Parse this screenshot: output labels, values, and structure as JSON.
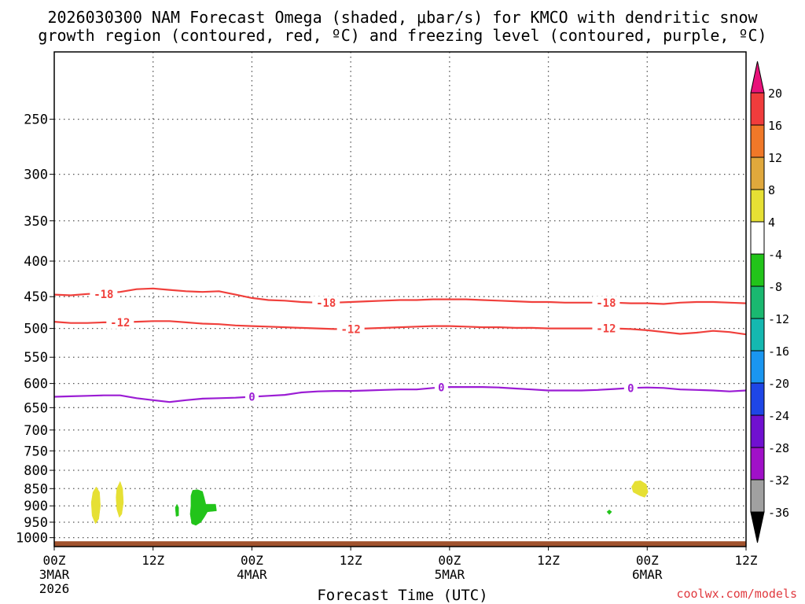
{
  "title_line1": "2026030300 NAM Forecast Omega (shaded, μbar/s) for KMCO with dendritic snow",
  "title_line2": "growth region (contoured, red, ºC) and freezing level (contoured, purple, ºC)",
  "credit": "coolwx.com/models",
  "chart_data": {
    "type": "contour",
    "xlabel": "Forecast Time (UTC)",
    "x_range_hours": [
      0,
      84
    ],
    "x_ticks": [
      {
        "hour": 0,
        "label": "00Z",
        "sub": "3MAR",
        "sub2": "2026"
      },
      {
        "hour": 12,
        "label": "12Z",
        "sub": "",
        "sub2": ""
      },
      {
        "hour": 24,
        "label": "00Z",
        "sub": "4MAR",
        "sub2": ""
      },
      {
        "hour": 36,
        "label": "12Z",
        "sub": "",
        "sub2": ""
      },
      {
        "hour": 48,
        "label": "00Z",
        "sub": "5MAR",
        "sub2": ""
      },
      {
        "hour": 60,
        "label": "12Z",
        "sub": "",
        "sub2": ""
      },
      {
        "hour": 72,
        "label": "00Z",
        "sub": "6MAR",
        "sub2": ""
      },
      {
        "hour": 84,
        "label": "12Z",
        "sub": "",
        "sub2": ""
      }
    ],
    "y_axis": "pressure_hPa_log",
    "y_range_hPa": [
      200,
      1030
    ],
    "y_ticks": [
      250,
      300,
      350,
      400,
      450,
      500,
      550,
      600,
      650,
      700,
      750,
      800,
      850,
      900,
      950,
      1000
    ],
    "grid": true,
    "contours": [
      {
        "name": "-18",
        "color": "#f0403c",
        "points": [
          [
            0,
            447
          ],
          [
            2,
            448
          ],
          [
            4,
            446
          ],
          [
            6,
            445
          ],
          [
            8,
            443
          ],
          [
            10,
            439
          ],
          [
            12,
            438
          ],
          [
            14,
            440
          ],
          [
            16,
            442
          ],
          [
            18,
            443
          ],
          [
            20,
            442
          ],
          [
            22,
            447
          ],
          [
            24,
            452
          ],
          [
            26,
            455
          ],
          [
            28,
            456
          ],
          [
            30,
            458
          ],
          [
            32,
            459
          ],
          [
            34,
            459
          ],
          [
            36,
            458
          ],
          [
            38,
            457
          ],
          [
            40,
            456
          ],
          [
            42,
            455
          ],
          [
            44,
            455
          ],
          [
            46,
            454
          ],
          [
            48,
            454
          ],
          [
            50,
            454
          ],
          [
            52,
            455
          ],
          [
            54,
            456
          ],
          [
            56,
            457
          ],
          [
            58,
            458
          ],
          [
            60,
            458
          ],
          [
            62,
            459
          ],
          [
            64,
            459
          ],
          [
            66,
            459
          ],
          [
            68,
            459
          ],
          [
            70,
            460
          ],
          [
            72,
            460
          ],
          [
            74,
            461
          ],
          [
            76,
            459
          ],
          [
            78,
            458
          ],
          [
            80,
            458
          ],
          [
            82,
            459
          ],
          [
            84,
            460
          ]
        ],
        "labels": [
          [
            6,
            446
          ],
          [
            33,
            459
          ],
          [
            67,
            459
          ]
        ]
      },
      {
        "name": "-12",
        "color": "#f0403c",
        "points": [
          [
            0,
            489
          ],
          [
            2,
            491
          ],
          [
            4,
            491
          ],
          [
            6,
            490
          ],
          [
            8,
            490
          ],
          [
            10,
            489
          ],
          [
            12,
            488
          ],
          [
            14,
            488
          ],
          [
            16,
            490
          ],
          [
            18,
            492
          ],
          [
            20,
            493
          ],
          [
            22,
            495
          ],
          [
            24,
            496
          ],
          [
            26,
            497
          ],
          [
            28,
            498
          ],
          [
            30,
            499
          ],
          [
            32,
            500
          ],
          [
            34,
            501
          ],
          [
            36,
            501
          ],
          [
            38,
            500
          ],
          [
            40,
            499
          ],
          [
            42,
            498
          ],
          [
            44,
            497
          ],
          [
            46,
            496
          ],
          [
            48,
            496
          ],
          [
            50,
            497
          ],
          [
            52,
            498
          ],
          [
            54,
            498
          ],
          [
            56,
            499
          ],
          [
            58,
            499
          ],
          [
            60,
            500
          ],
          [
            62,
            500
          ],
          [
            64,
            500
          ],
          [
            66,
            500
          ],
          [
            68,
            500
          ],
          [
            70,
            501
          ],
          [
            72,
            503
          ],
          [
            74,
            506
          ],
          [
            76,
            509
          ],
          [
            78,
            507
          ],
          [
            80,
            504
          ],
          [
            82,
            506
          ],
          [
            84,
            510
          ]
        ],
        "labels": [
          [
            8,
            490
          ],
          [
            36,
            501
          ],
          [
            67,
            500
          ]
        ]
      },
      {
        "name": "0",
        "color": "#9b1cd4",
        "points": [
          [
            0,
            627
          ],
          [
            2,
            626
          ],
          [
            4,
            625
          ],
          [
            6,
            624
          ],
          [
            8,
            624
          ],
          [
            10,
            630
          ],
          [
            12,
            634
          ],
          [
            14,
            638
          ],
          [
            16,
            634
          ],
          [
            18,
            631
          ],
          [
            20,
            630
          ],
          [
            22,
            629
          ],
          [
            24,
            627
          ],
          [
            26,
            625
          ],
          [
            28,
            623
          ],
          [
            30,
            618
          ],
          [
            32,
            616
          ],
          [
            34,
            615
          ],
          [
            36,
            615
          ],
          [
            38,
            614
          ],
          [
            40,
            613
          ],
          [
            42,
            612
          ],
          [
            44,
            612
          ],
          [
            46,
            609
          ],
          [
            48,
            607
          ],
          [
            50,
            607
          ],
          [
            52,
            607
          ],
          [
            54,
            608
          ],
          [
            56,
            610
          ],
          [
            58,
            612
          ],
          [
            60,
            614
          ],
          [
            62,
            614
          ],
          [
            64,
            614
          ],
          [
            66,
            613
          ],
          [
            68,
            611
          ],
          [
            70,
            609
          ],
          [
            72,
            608
          ],
          [
            74,
            609
          ],
          [
            76,
            612
          ],
          [
            78,
            613
          ],
          [
            80,
            614
          ],
          [
            82,
            616
          ],
          [
            84,
            614
          ]
        ],
        "labels": [
          [
            24,
            627
          ],
          [
            47,
            608
          ],
          [
            70,
            609
          ]
        ]
      }
    ],
    "shaded_regions": [
      {
        "class": "4 to 8",
        "color": "#e6e034",
        "points": [
          [
            4.7,
            860
          ],
          [
            5.1,
            845
          ],
          [
            5.5,
            860
          ],
          [
            5.6,
            900
          ],
          [
            5.4,
            940
          ],
          [
            5.0,
            955
          ],
          [
            4.6,
            930
          ],
          [
            4.5,
            890
          ]
        ]
      },
      {
        "class": "4 to 8",
        "color": "#e6e034",
        "points": [
          [
            7.6,
            850
          ],
          [
            8.0,
            830
          ],
          [
            8.3,
            850
          ],
          [
            8.4,
            890
          ],
          [
            8.2,
            925
          ],
          [
            7.9,
            935
          ],
          [
            7.6,
            910
          ],
          [
            7.5,
            875
          ]
        ]
      },
      {
        "class": "4 to 8",
        "color": "#e6e034",
        "points": [
          [
            70.1,
            845
          ],
          [
            70.5,
            830
          ],
          [
            71.2,
            828
          ],
          [
            71.9,
            838
          ],
          [
            72.1,
            860
          ],
          [
            71.7,
            875
          ],
          [
            71.1,
            870
          ],
          [
            70.3,
            860
          ]
        ]
      },
      {
        "class": "-8 to -4",
        "color": "#22c41a",
        "points": [
          [
            14.7,
            905
          ],
          [
            14.9,
            895
          ],
          [
            15.1,
            905
          ],
          [
            15.1,
            930
          ],
          [
            14.8,
            932
          ]
        ]
      },
      {
        "class": "-8 to -4",
        "color": "#22c41a",
        "points": [
          [
            16.6,
            870
          ],
          [
            16.8,
            855
          ],
          [
            17.4,
            853
          ],
          [
            18.0,
            858
          ],
          [
            18.2,
            875
          ],
          [
            18.4,
            895
          ],
          [
            19.6,
            895
          ],
          [
            19.7,
            915
          ],
          [
            18.6,
            918
          ],
          [
            18.2,
            935
          ],
          [
            17.8,
            950
          ],
          [
            17.2,
            960
          ],
          [
            16.7,
            955
          ],
          [
            16.5,
            925
          ],
          [
            16.6,
            900
          ]
        ]
      },
      {
        "class": "-8 to -4",
        "color": "#22c41a",
        "points": [
          [
            67.1,
            918
          ],
          [
            67.4,
            912
          ],
          [
            67.7,
            918
          ],
          [
            67.4,
            926
          ]
        ]
      }
    ],
    "ground_band": {
      "from_hPa": 1012,
      "color": "#a0522d"
    },
    "colorbar": {
      "labels": [
        "20",
        "16",
        "12",
        "8",
        "4",
        "-4",
        "-8",
        "-12",
        "-16",
        "-20",
        "-24",
        "-28",
        "-32",
        "-36"
      ],
      "top_arrow": "#e8127a",
      "colors": [
        "#f03c3c",
        "#f07828",
        "#e0a83c",
        "#e6e034",
        "#ffffff",
        "#22c41a",
        "#1ab870",
        "#14b8b0",
        "#1a96f0",
        "#1e46e6",
        "#7010d0",
        "#a010c8",
        "#a0a0a0"
      ],
      "bottom_arrow": "#000000"
    }
  }
}
